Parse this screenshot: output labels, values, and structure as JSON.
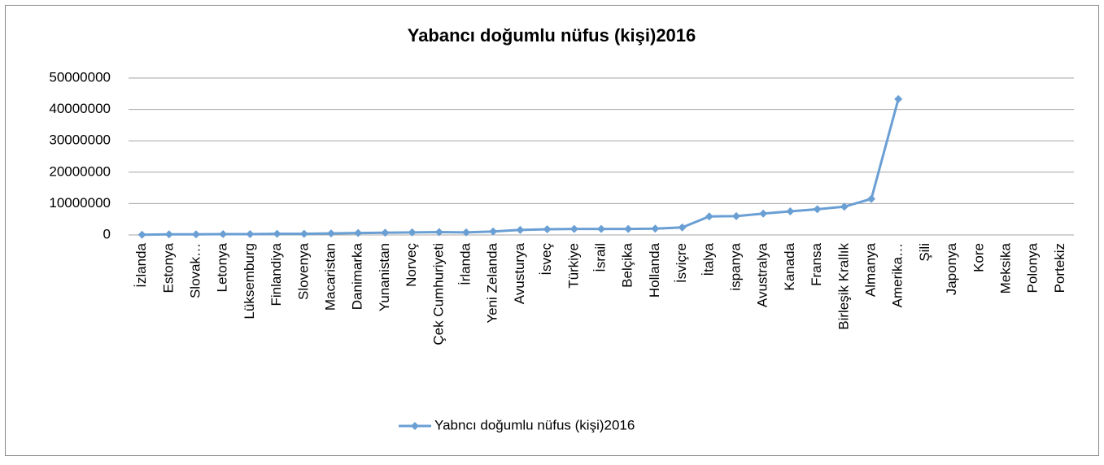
{
  "chart_data": {
    "type": "line",
    "title": "Yabancı doğumlu nüfus (kişi)2016",
    "categories": [
      "İzlanda",
      "Estonya",
      "Slovak…",
      "Letonya",
      "Lüksemburg",
      "Finlandiya",
      "Slovenya",
      "Macaristan",
      "Danimarka",
      "Yunanistan",
      "Norveç",
      "Çek Cumhuriyeti",
      "İrlanda",
      "Yeni Zelanda",
      "Avusturya",
      "İsveç",
      "Türkiye",
      "İsrail",
      "Belçika",
      "Hollanda",
      "İsviçre",
      "İtalya",
      "ispanya",
      "Avustralya",
      "Kanada",
      "Fransa",
      "Birleşik Krallık",
      "Almanya",
      "Amerika…",
      "Şili",
      "Japonya",
      "Kore",
      "Meksika",
      "Polonya",
      "Portekiz"
    ],
    "series": [
      {
        "name": "Yabncı doğumlu nüfus (kişi)2016",
        "color": "#6a9fd4",
        "values": [
          50000,
          200000,
          180000,
          260000,
          270000,
          350000,
          360000,
          500000,
          600000,
          700000,
          800000,
          900000,
          800000,
          1100000,
          1600000,
          1800000,
          1900000,
          1900000,
          1900000,
          2000000,
          2400000,
          5900000,
          6000000,
          6800000,
          7500000,
          8200000,
          9000000,
          11500000,
          43300000,
          null,
          null,
          null,
          null,
          null,
          null
        ]
      }
    ],
    "ylim": [
      0,
      50000000
    ],
    "yticks": [
      0,
      10000000,
      20000000,
      30000000,
      40000000,
      50000000
    ],
    "grid": true,
    "legend": "bottom"
  }
}
